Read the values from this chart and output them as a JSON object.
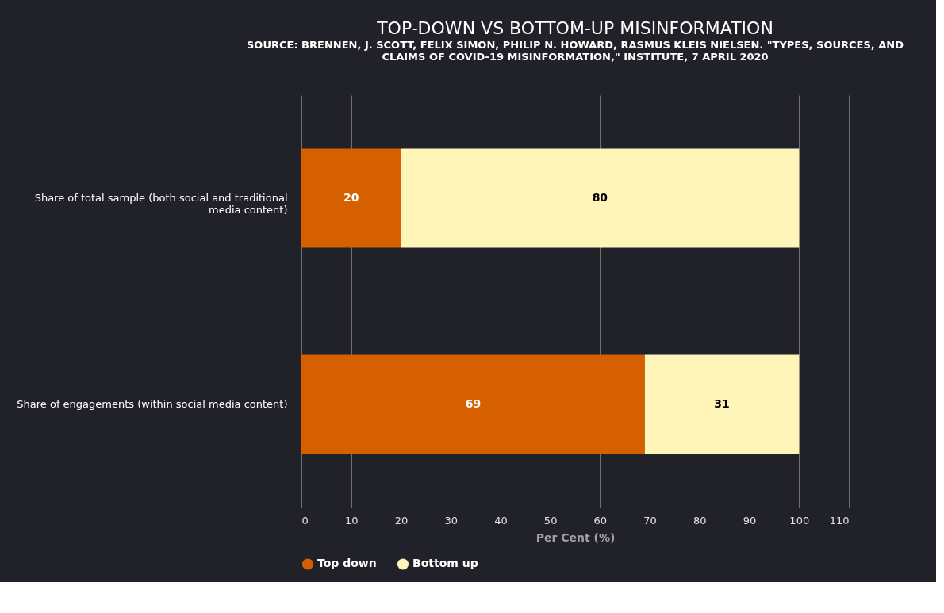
{
  "chart_data": {
    "type": "bar",
    "orientation": "horizontal",
    "stacked": true,
    "title": "TOP-DOWN VS BOTTOM-UP MISINFORMATION",
    "subtitle": "SOURCE: BRENNEN, J. SCOTT, FELIX SIMON, PHILIP N. HOWARD, RASMUS KLEIS NIELSEN. \"TYPES, SOURCES, AND CLAIMS OF COVID-19 MISINFORMATION,\" INSTITUTE, 7 APRIL 2020",
    "xlabel": "Per Cent (%)",
    "categories": [
      "Share of total sample (both social and traditional media content)",
      "Share of engagements (within social media content)"
    ],
    "series": [
      {
        "name": "Top down",
        "color": "#d65f00",
        "values": [
          20,
          69
        ]
      },
      {
        "name": "Bottom up",
        "color": "#fff5b8",
        "values": [
          80,
          31
        ]
      }
    ],
    "xlim": [
      0,
      110
    ],
    "xticks": [
      0,
      10,
      20,
      30,
      40,
      50,
      60,
      70,
      80,
      90,
      100,
      110
    ],
    "grid": "x",
    "legend": "bottom",
    "data_labels": true
  }
}
